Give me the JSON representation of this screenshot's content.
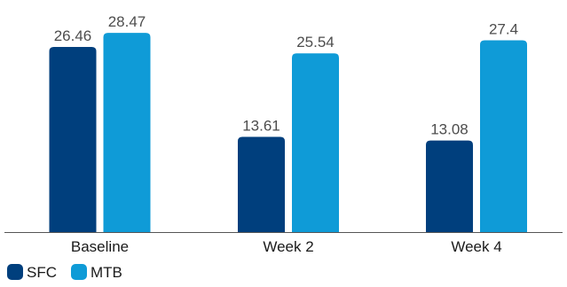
{
  "chart_data": {
    "type": "bar",
    "categories": [
      "Baseline",
      "Week 2",
      "Week 4"
    ],
    "series": [
      {
        "name": "SFC",
        "values": [
          26.46,
          13.61,
          13.08
        ],
        "labels": [
          "26.46",
          "13.61",
          "13.08"
        ],
        "color": "#003f7d"
      },
      {
        "name": "MTB",
        "values": [
          28.47,
          25.54,
          27.4
        ],
        "labels": [
          "28.47",
          "25.54",
          "27.4"
        ],
        "color": "#0f9bd7"
      }
    ],
    "title": "",
    "xlabel": "",
    "ylabel": "",
    "ylim": [
      0,
      30
    ],
    "grid": false,
    "legend": "bottom-left"
  }
}
